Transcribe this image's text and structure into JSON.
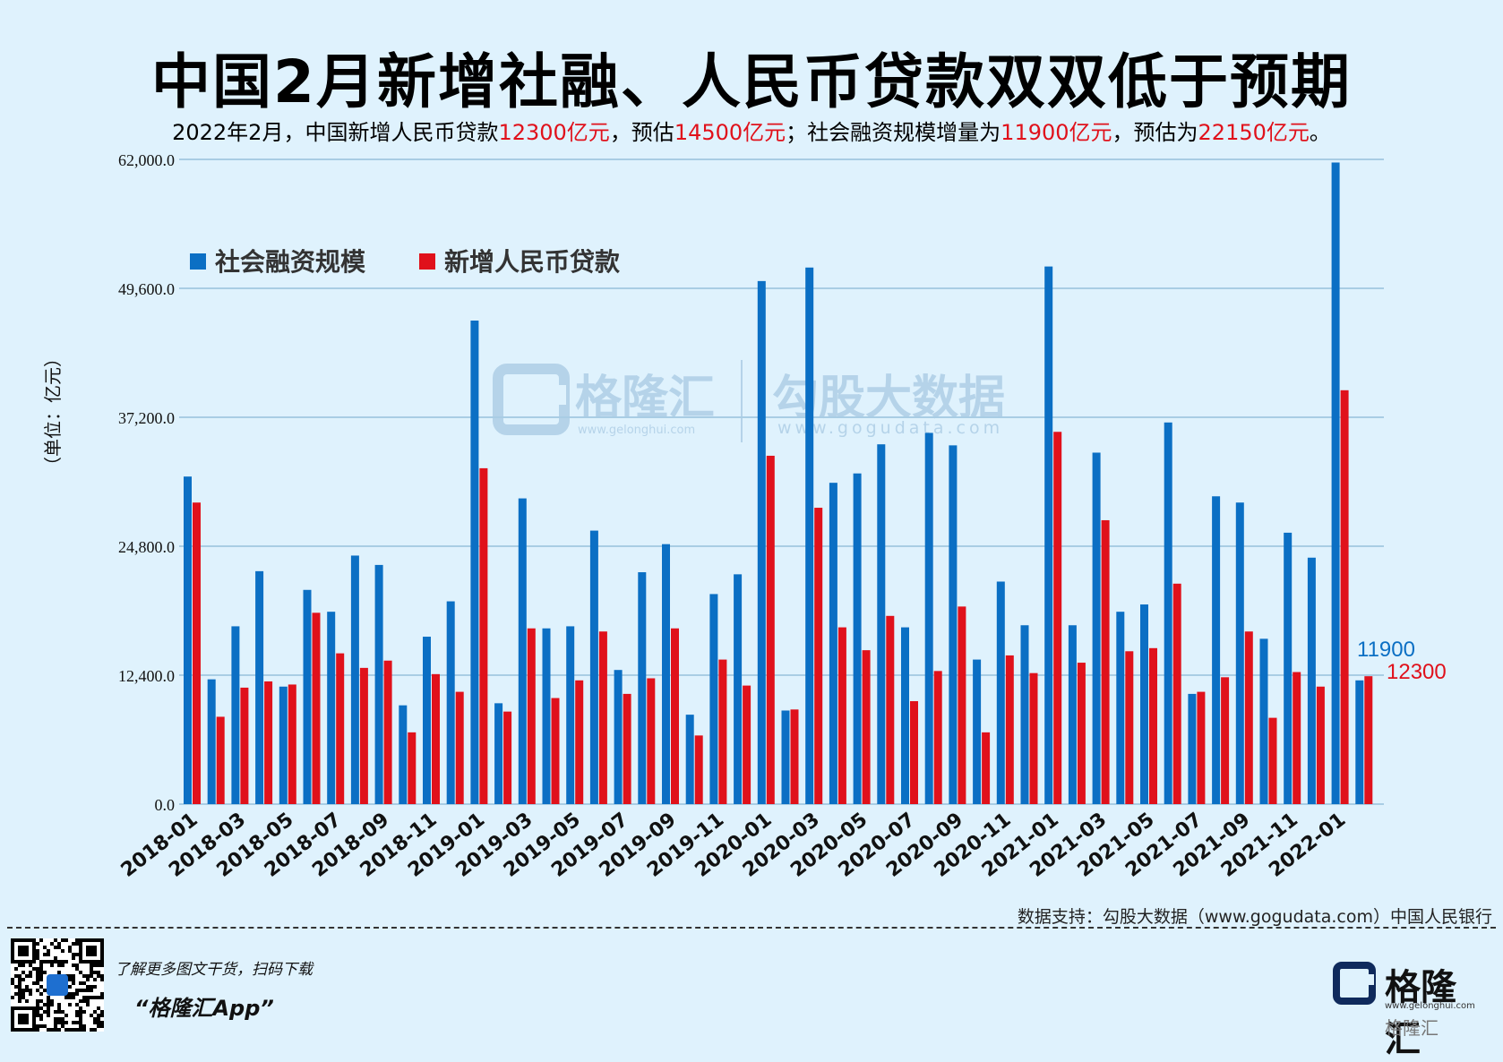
{
  "title": "中国2月新增社融、人民币贷款双双低于预期",
  "subtitle": {
    "p1": "2022年2月，中国新增人民币贷款",
    "v1": "12300亿元",
    "p2": "，预估",
    "v2": "14500亿元",
    "p3": "；社会融资规模增量为",
    "v3": "11900亿元",
    "p4": "，预估为",
    "v4": "22150亿元",
    "p5": "。"
  },
  "watermark": {
    "brand1": "格隆汇",
    "url1": "www.gelonghui.com",
    "brand2": "勾股大数据",
    "url2": "www.gogudata.com"
  },
  "source": "数据支持：勾股大数据（www.gogudata.com）中国人民银行",
  "footer": {
    "promo_line1": "了解更多图文干货，扫码下载",
    "promo_line2": "“格隆汇App”",
    "brand_name": "格隆汇",
    "brand_url": "www.gelonghui.com",
    "brand_sub": "格隆汇"
  },
  "colors": {
    "tsf": "#0b6fc4",
    "loan": "#e0111b",
    "background": "#dff2fd",
    "grid": "#a9cde4"
  },
  "chart_data": {
    "type": "bar",
    "ylabel": "（单位：亿元）",
    "ylim": [
      0,
      62000
    ],
    "yticks": [
      0,
      12400,
      24800,
      37200,
      49600,
      62000
    ],
    "ytick_labels": [
      "0.0",
      "12,400.0",
      "24,800.0",
      "37,200.0",
      "49,600.0",
      "62,000.0"
    ],
    "grid": true,
    "legend_position": "top-left",
    "categories": [
      "2018-01",
      "2018-02",
      "2018-03",
      "2018-04",
      "2018-05",
      "2018-06",
      "2018-07",
      "2018-08",
      "2018-09",
      "2018-10",
      "2018-11",
      "2018-12",
      "2019-01",
      "2019-02",
      "2019-03",
      "2019-04",
      "2019-05",
      "2019-06",
      "2019-07",
      "2019-08",
      "2019-09",
      "2019-10",
      "2019-11",
      "2019-12",
      "2020-01",
      "2020-02",
      "2020-03",
      "2020-04",
      "2020-05",
      "2020-06",
      "2020-07",
      "2020-08",
      "2020-09",
      "2020-10",
      "2020-11",
      "2020-12",
      "2021-01",
      "2021-02",
      "2021-03",
      "2021-04",
      "2021-05",
      "2021-06",
      "2021-07",
      "2021-08",
      "2021-09",
      "2021-10",
      "2021-11",
      "2021-12",
      "2022-01",
      "2022-02"
    ],
    "xtick_labels": [
      "2018-01",
      "2018-03",
      "2018-05",
      "2018-07",
      "2018-09",
      "2018-11",
      "2019-01",
      "2019-03",
      "2019-05",
      "2019-07",
      "2019-09",
      "2019-11",
      "2020-01",
      "2020-03",
      "2020-05",
      "2020-07",
      "2020-09",
      "2020-11",
      "2021-01",
      "2021-03",
      "2021-05",
      "2021-07",
      "2021-09",
      "2021-11",
      "2022-01"
    ],
    "series": [
      {
        "name": "社会融资规模",
        "color": "#0b6fc4",
        "values": [
          31500,
          12000,
          17100,
          22400,
          11300,
          20600,
          18500,
          23900,
          23000,
          9500,
          16100,
          19500,
          46500,
          9700,
          29400,
          16900,
          17100,
          26300,
          12900,
          22300,
          25000,
          8600,
          20200,
          22100,
          50300,
          9000,
          51600,
          30900,
          31800,
          34600,
          17000,
          35700,
          34500,
          13900,
          21400,
          17200,
          51700,
          17200,
          33800,
          18500,
          19200,
          36700,
          10600,
          29600,
          29000,
          15900,
          26100,
          23700,
          61700,
          11900
        ]
      },
      {
        "name": "新增人民币贷款",
        "color": "#e0111b",
        "values": [
          29000,
          8400,
          11200,
          11800,
          11500,
          18400,
          14500,
          13100,
          13800,
          6900,
          12500,
          10800,
          32300,
          8900,
          16900,
          10200,
          11900,
          16600,
          10600,
          12100,
          16900,
          6600,
          13900,
          11400,
          33500,
          9100,
          28500,
          17000,
          14800,
          18100,
          9900,
          12800,
          19000,
          6900,
          14300,
          12600,
          35800,
          13600,
          27300,
          14700,
          15000,
          21200,
          10800,
          12200,
          16600,
          8300,
          12700,
          11300,
          39800,
          12300
        ]
      }
    ],
    "annotations": [
      {
        "series": "社会融资规模",
        "label": "11900"
      },
      {
        "series": "新增人民币贷款",
        "label": "12300"
      }
    ]
  }
}
